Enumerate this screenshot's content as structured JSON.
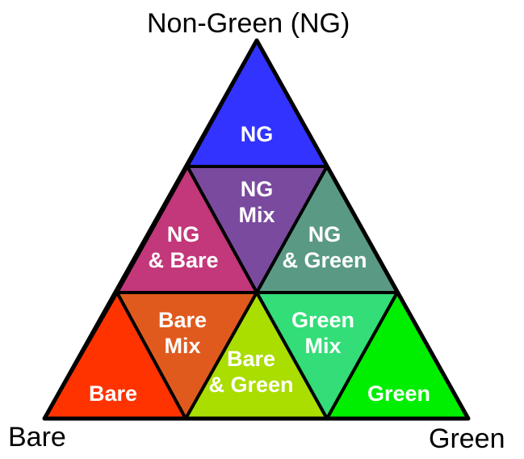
{
  "vertices": {
    "top": "Non-Green (NG)",
    "left": "Bare",
    "right": "Green"
  },
  "regions": [
    {
      "id": "ng",
      "lines": [
        "NG"
      ],
      "color": "#3333ff"
    },
    {
      "id": "ng-mix",
      "lines": [
        "NG",
        "Mix"
      ],
      "color": "#7a4a9e"
    },
    {
      "id": "ng-bare",
      "lines": [
        "NG",
        "& Bare"
      ],
      "color": "#c2387a"
    },
    {
      "id": "ng-green",
      "lines": [
        "NG",
        "& Green"
      ],
      "color": "#5a9a85"
    },
    {
      "id": "bare",
      "lines": [
        "Bare"
      ],
      "color": "#ff3300"
    },
    {
      "id": "bare-mix",
      "lines": [
        "Bare",
        "Mix"
      ],
      "color": "#e05a1e"
    },
    {
      "id": "bare-green",
      "lines": [
        "Bare",
        "& Green"
      ],
      "color": "#aadd00"
    },
    {
      "id": "green-mix",
      "lines": [
        "Green",
        "Mix"
      ],
      "color": "#33dd77"
    },
    {
      "id": "green",
      "lines": [
        "Green"
      ],
      "color": "#00ee00"
    }
  ]
}
